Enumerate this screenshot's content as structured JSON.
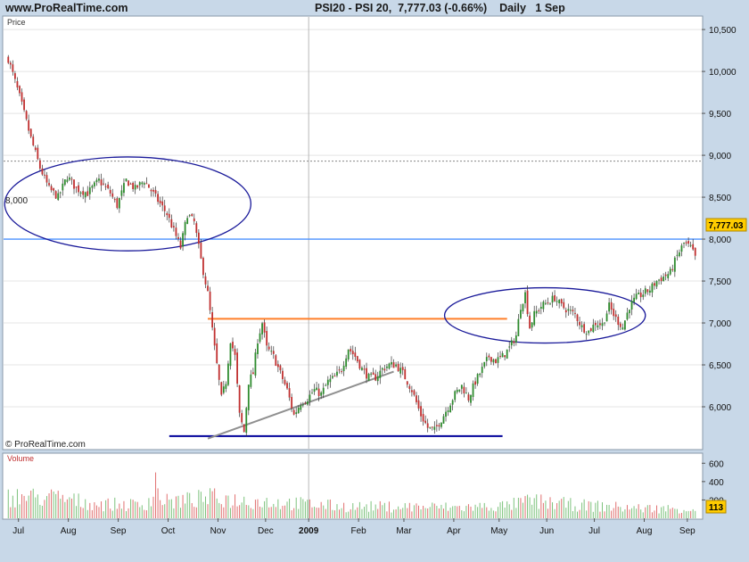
{
  "header": {
    "site": "www.ProRealTime.com",
    "instrument": "PSI20 - PSI 20",
    "last": "7,777.03 (-0.66%)",
    "timeframe": "Daily",
    "date": "1 Sep"
  },
  "price_pane": {
    "label": "Price",
    "copyright": "© ProRealTime.com",
    "level_label": "8,000",
    "last_badge": "7,777.03"
  },
  "volume_pane": {
    "label": "Volume",
    "last_badge": "113"
  },
  "colors": {
    "up_candle": "#2e8b2e",
    "down_candle": "#c03030",
    "volume_bar": "#7cc27c",
    "horizontal_line": "#4a90ff",
    "orange_line": "#ff7f2a",
    "navy_line": "#00009a",
    "trendline": "#909090",
    "ellipse": "#1a1a9a",
    "badge_bg": "#ffcc00"
  },
  "chart_data": {
    "type": "candlestick",
    "title": "PSI20 - PSI 20",
    "ylabel": "Price",
    "price_ylim": [
      5500,
      10650
    ],
    "price_ticks": [
      {
        "value": 6000,
        "label": "6,000"
      },
      {
        "value": 6500,
        "label": "6,500"
      },
      {
        "value": 7000,
        "label": "7,000"
      },
      {
        "value": 7500,
        "label": "7,500"
      },
      {
        "value": 8000,
        "label": "8,000"
      },
      {
        "value": 8500,
        "label": "8,500"
      },
      {
        "value": 9000,
        "label": "9,000"
      },
      {
        "value": 9500,
        "label": "9,500"
      },
      {
        "value": 10000,
        "label": "10,000"
      },
      {
        "value": 10500,
        "label": "10,500"
      }
    ],
    "volume_ylim": [
      0,
      700
    ],
    "volume_ticks": [
      {
        "value": 200,
        "label": "200"
      },
      {
        "value": 400,
        "label": "400"
      },
      {
        "value": 600,
        "label": "600"
      }
    ],
    "months": [
      "Jul",
      "Aug",
      "Sep",
      "Oct",
      "Nov",
      "Dec",
      "2009",
      "Feb",
      "Mar",
      "Apr",
      "May",
      "Jun",
      "Jul",
      "Aug",
      "Sep"
    ],
    "grid": true,
    "last_close": 7777.03,
    "last_volume": 113,
    "price_path": [
      [
        0,
        10150
      ],
      [
        5,
        9700
      ],
      [
        10,
        9200
      ],
      [
        14,
        8850
      ],
      [
        18,
        8600
      ],
      [
        22,
        8500
      ],
      [
        26,
        8750
      ],
      [
        30,
        8600
      ],
      [
        35,
        8550
      ],
      [
        40,
        8700
      ],
      [
        45,
        8550
      ],
      [
        48,
        8400
      ],
      [
        52,
        8700
      ],
      [
        56,
        8600
      ],
      [
        60,
        8700
      ],
      [
        65,
        8500
      ],
      [
        70,
        8300
      ],
      [
        73,
        8100
      ],
      [
        76,
        7900
      ],
      [
        79,
        8300
      ],
      [
        82,
        8200
      ],
      [
        85,
        7750
      ],
      [
        88,
        7350
      ],
      [
        91,
        6700
      ],
      [
        94,
        6100
      ],
      [
        96,
        6300
      ],
      [
        98,
        6800
      ],
      [
        100,
        6600
      ],
      [
        102,
        5900
      ],
      [
        104,
        5700
      ],
      [
        106,
        6300
      ],
      [
        108,
        6400
      ],
      [
        110,
        6800
      ],
      [
        112,
        7000
      ],
      [
        114,
        6700
      ],
      [
        117,
        6600
      ],
      [
        120,
        6400
      ],
      [
        123,
        6200
      ],
      [
        126,
        5900
      ],
      [
        129,
        6050
      ],
      [
        132,
        6100
      ],
      [
        135,
        6200
      ],
      [
        138,
        6150
      ],
      [
        141,
        6300
      ],
      [
        144,
        6350
      ],
      [
        147,
        6450
      ],
      [
        150,
        6700
      ],
      [
        153,
        6600
      ],
      [
        156,
        6450
      ],
      [
        159,
        6350
      ],
      [
        162,
        6350
      ],
      [
        165,
        6450
      ],
      [
        168,
        6500
      ],
      [
        171,
        6500
      ],
      [
        174,
        6400
      ],
      [
        176,
        6300
      ],
      [
        178,
        6200
      ],
      [
        180,
        6050
      ],
      [
        182,
        5900
      ],
      [
        185,
        5750
      ],
      [
        188,
        5720
      ],
      [
        191,
        5850
      ],
      [
        194,
        6000
      ],
      [
        197,
        6150
      ],
      [
        200,
        6250
      ],
      [
        203,
        6100
      ],
      [
        206,
        6300
      ],
      [
        209,
        6450
      ],
      [
        212,
        6600
      ],
      [
        215,
        6550
      ],
      [
        218,
        6600
      ],
      [
        221,
        6700
      ],
      [
        224,
        6850
      ],
      [
        226,
        7200
      ],
      [
        228,
        7350
      ],
      [
        230,
        6950
      ],
      [
        232,
        7100
      ],
      [
        235,
        7200
      ],
      [
        238,
        7250
      ],
      [
        241,
        7300
      ],
      [
        244,
        7200
      ],
      [
        247,
        7150
      ],
      [
        250,
        7100
      ],
      [
        253,
        6950
      ],
      [
        256,
        6900
      ],
      [
        259,
        7000
      ],
      [
        262,
        6980
      ],
      [
        265,
        7200
      ],
      [
        268,
        7050
      ],
      [
        271,
        6950
      ],
      [
        274,
        7200
      ],
      [
        277,
        7300
      ],
      [
        280,
        7350
      ],
      [
        283,
        7400
      ],
      [
        286,
        7500
      ],
      [
        289,
        7550
      ],
      [
        292,
        7600
      ],
      [
        295,
        7800
      ],
      [
        298,
        7950
      ],
      [
        301,
        7900
      ],
      [
        303,
        7777
      ]
    ],
    "volume_path": [
      [
        0,
        260
      ],
      [
        20,
        250
      ],
      [
        40,
        170
      ],
      [
        60,
        160
      ],
      [
        65,
        300
      ],
      [
        70,
        200
      ],
      [
        80,
        220
      ],
      [
        90,
        250
      ],
      [
        100,
        220
      ],
      [
        120,
        190
      ],
      [
        150,
        140
      ],
      [
        180,
        140
      ],
      [
        200,
        130
      ],
      [
        220,
        150
      ],
      [
        230,
        210
      ],
      [
        250,
        160
      ],
      [
        280,
        120
      ],
      [
        303,
        113
      ]
    ],
    "annotations": [
      {
        "type": "hline",
        "value": 8000,
        "label": "8,000"
      },
      {
        "type": "hline",
        "value": 8930,
        "style": "dotted"
      },
      {
        "type": "segment",
        "x1": 88,
        "x2": 220,
        "value": 7050
      },
      {
        "type": "segment",
        "x1": 71,
        "x2": 218,
        "value": 5650
      },
      {
        "type": "trendline",
        "x1": 88,
        "y1": 5620,
        "x2": 170,
        "y2": 6420
      },
      {
        "type": "ellipse",
        "x1": 0,
        "x2": 107,
        "value_top": 8980,
        "value_bottom": 7860
      },
      {
        "type": "ellipse",
        "x1": 194,
        "x2": 281,
        "value_top": 7420,
        "value_bottom": 6760
      }
    ]
  }
}
